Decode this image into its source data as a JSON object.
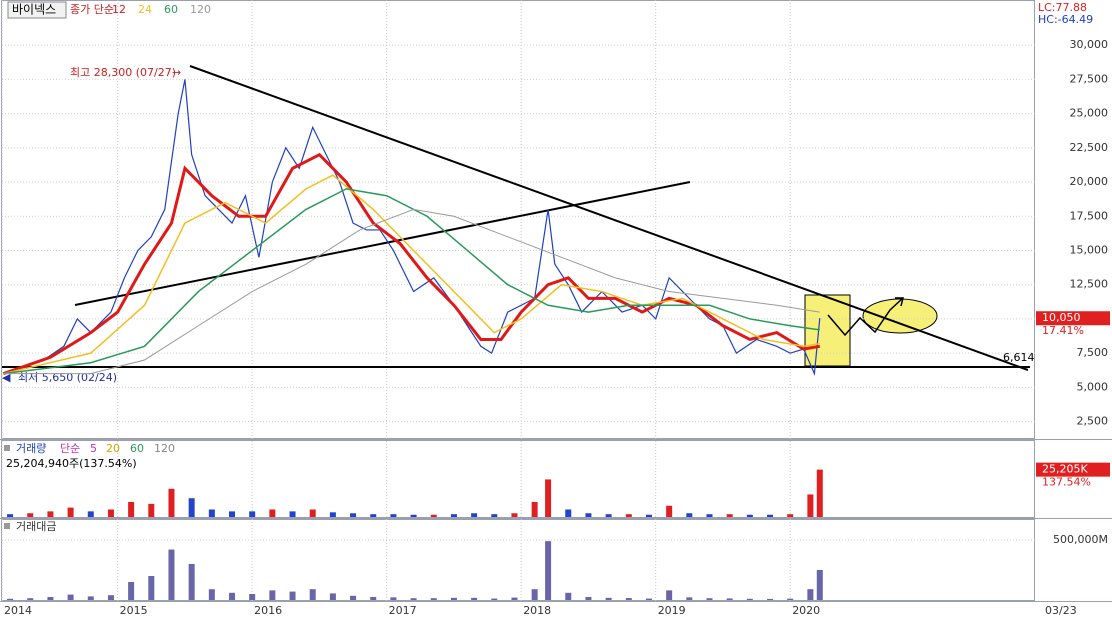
{
  "header": {
    "stock": "바이넥스",
    "legend_prefix": "종가 단순",
    "lc": "LC:77.88",
    "hc": "HC:-64.49",
    "date_label": "03/23"
  },
  "chart_data": [
    {
      "type": "line",
      "xlim": [
        2014.14,
        2021.82
      ],
      "ylim": [
        1300,
        33300
      ],
      "yticks": [
        {
          "value": 2500,
          "label": "2,500"
        },
        {
          "value": 5000,
          "label": "5,000"
        },
        {
          "value": 7500,
          "label": "7,500"
        },
        {
          "value": 10000,
          "label": "10,000"
        },
        {
          "value": 12500,
          "label": "12,500"
        },
        {
          "value": 15000,
          "label": "15,000"
        },
        {
          "value": 17500,
          "label": "17,500"
        },
        {
          "value": 20000,
          "label": "20,000"
        },
        {
          "value": 22500,
          "label": "22,500"
        },
        {
          "value": 25000,
          "label": "25,000"
        },
        {
          "value": 27500,
          "label": "27,500"
        },
        {
          "value": 30000,
          "label": "30,000"
        }
      ],
      "grid": true,
      "price": {
        "color": "#2040c0",
        "x": [
          2014.15,
          2014.3,
          2014.45,
          2014.6,
          2014.7,
          2014.8,
          2014.95,
          2015.05,
          2015.15,
          2015.25,
          2015.35,
          2015.45,
          2015.5,
          2015.55,
          2015.65,
          2015.75,
          2015.85,
          2015.95,
          2016.05,
          2016.15,
          2016.25,
          2016.35,
          2016.45,
          2016.55,
          2016.65,
          2016.75,
          2016.85,
          2016.95,
          2017.05,
          2017.2,
          2017.35,
          2017.5,
          2017.6,
          2017.7,
          2017.78,
          2017.9,
          2018.0,
          2018.1,
          2018.2,
          2018.25,
          2018.35,
          2018.45,
          2018.6,
          2018.75,
          2018.9,
          2019.0,
          2019.1,
          2019.25,
          2019.4,
          2019.5,
          2019.6,
          2019.75,
          2019.9,
          2020.0,
          2020.1,
          2020.18,
          2020.22
        ],
        "values": [
          6000,
          6500,
          7000,
          8000,
          10000,
          9000,
          10500,
          13000,
          15000,
          16000,
          18000,
          25000,
          27500,
          22000,
          19000,
          18000,
          17000,
          19000,
          14500,
          20000,
          22500,
          21000,
          24000,
          22000,
          20000,
          17000,
          16500,
          16500,
          15000,
          12000,
          13000,
          11000,
          9500,
          8000,
          7500,
          10500,
          11000,
          11500,
          18000,
          14000,
          12500,
          10500,
          12000,
          10500,
          11000,
          10000,
          13000,
          11500,
          10000,
          9500,
          7500,
          8500,
          8000,
          7500,
          7800,
          6000,
          10050
        ]
      },
      "series": [
        {
          "name": "12",
          "color": "#e01818",
          "width": 3,
          "x": [
            2014.15,
            2014.5,
            2014.8,
            2015.0,
            2015.2,
            2015.4,
            2015.5,
            2015.7,
            2015.9,
            2016.1,
            2016.3,
            2016.5,
            2016.7,
            2016.9,
            2017.1,
            2017.3,
            2017.5,
            2017.7,
            2017.85,
            2018.0,
            2018.2,
            2018.35,
            2018.5,
            2018.7,
            2018.9,
            2019.1,
            2019.3,
            2019.5,
            2019.7,
            2019.9,
            2020.1,
            2020.22
          ],
          "values": [
            6000,
            7200,
            9000,
            10500,
            14000,
            17000,
            21000,
            19000,
            17500,
            17500,
            21000,
            22000,
            20000,
            17000,
            15500,
            13000,
            11000,
            8500,
            8500,
            10500,
            12500,
            13000,
            11500,
            11500,
            10500,
            11500,
            11000,
            9500,
            8500,
            9000,
            7800,
            8000
          ]
        },
        {
          "name": "24",
          "color": "#f0c020",
          "width": 1.5,
          "x": [
            2014.15,
            2014.8,
            2015.2,
            2015.5,
            2015.8,
            2016.1,
            2016.4,
            2016.6,
            2016.9,
            2017.2,
            2017.5,
            2017.8,
            2018.0,
            2018.3,
            2018.6,
            2018.9,
            2019.2,
            2019.5,
            2019.8,
            2020.1,
            2020.22
          ],
          "values": [
            6000,
            7500,
            11000,
            17000,
            18500,
            17000,
            19500,
            20500,
            18000,
            15000,
            12000,
            9000,
            10000,
            12500,
            12000,
            11000,
            11500,
            10000,
            8500,
            8000,
            8200
          ]
        },
        {
          "name": "60",
          "color": "#2a9a5a",
          "width": 1.5,
          "x": [
            2014.15,
            2014.8,
            2015.2,
            2015.6,
            2016.0,
            2016.4,
            2016.7,
            2017.0,
            2017.3,
            2017.6,
            2017.9,
            2018.2,
            2018.5,
            2018.8,
            2019.1,
            2019.4,
            2019.7,
            2020.0,
            2020.22
          ],
          "values": [
            6000,
            6800,
            8000,
            12000,
            15000,
            18000,
            19500,
            19000,
            17500,
            15000,
            12500,
            11000,
            10500,
            11000,
            11000,
            11000,
            10000,
            9500,
            9200
          ]
        },
        {
          "name": "120",
          "color": "#9a9a9a",
          "width": 1,
          "x": [
            2014.15,
            2014.8,
            2015.2,
            2015.6,
            2016.0,
            2016.4,
            2016.8,
            2017.2,
            2017.5,
            2017.9,
            2018.3,
            2018.7,
            2019.1,
            2019.5,
            2019.9,
            2020.22
          ],
          "values": [
            6000,
            6000,
            7000,
            9500,
            12000,
            14000,
            16500,
            18000,
            17500,
            16000,
            14500,
            13000,
            12000,
            11500,
            11000,
            10500
          ]
        }
      ],
      "high_label": "최고 28,300 (07/27)",
      "low_label": "최저 5,650 (02/24)",
      "level_label": "6,614",
      "current": {
        "value": 10050,
        "label": "10,050",
        "change": "17.41%"
      }
    },
    {
      "type": "bar",
      "title": "거래량",
      "legend_prefix": "단순",
      "ma_labels": [
        {
          "label": "5",
          "color": "#c030c0"
        },
        {
          "label": "20",
          "color": "#e0a000"
        },
        {
          "label": "60",
          "color": "#2a9a5a"
        },
        {
          "label": "120",
          "color": "#888888"
        }
      ],
      "info": "25,204,940주(137.54%)",
      "xlim": [
        2014.14,
        2021.82
      ],
      "ylim": [
        0,
        33000000
      ],
      "x": [
        2014.2,
        2014.35,
        2014.5,
        2014.65,
        2014.8,
        2014.95,
        2015.1,
        2015.25,
        2015.4,
        2015.55,
        2015.7,
        2015.85,
        2016.0,
        2016.15,
        2016.3,
        2016.45,
        2016.6,
        2016.75,
        2016.9,
        2017.05,
        2017.2,
        2017.35,
        2017.5,
        2017.65,
        2017.8,
        2017.95,
        2018.1,
        2018.2,
        2018.35,
        2018.5,
        2018.65,
        2018.8,
        2018.95,
        2019.1,
        2019.25,
        2019.4,
        2019.55,
        2019.7,
        2019.85,
        2020.0,
        2020.15,
        2020.22
      ],
      "values": [
        1500000,
        2000000,
        3000000,
        5000000,
        3000000,
        4000000,
        8000000,
        7000000,
        15000000,
        10000000,
        4000000,
        3000000,
        3000000,
        4000000,
        3000000,
        4000000,
        2500000,
        2000000,
        1500000,
        1500000,
        1200000,
        1200000,
        1500000,
        2000000,
        1500000,
        2000000,
        8000000,
        20000000,
        4000000,
        2000000,
        1500000,
        1500000,
        1200000,
        6000000,
        2000000,
        1500000,
        1500000,
        1200000,
        1200000,
        1500000,
        12000000,
        25204940
      ],
      "colors": [
        "#2244cc",
        "#e02020",
        "#e02020",
        "#e02020",
        "#2244cc",
        "#e02020",
        "#e02020",
        "#e02020",
        "#e02020",
        "#2244cc",
        "#2244cc",
        "#2244cc",
        "#2244cc",
        "#e02020",
        "#2244cc",
        "#e02020",
        "#2244cc",
        "#2244cc",
        "#2244cc",
        "#2244cc",
        "#2244cc",
        "#e02020",
        "#2244cc",
        "#2244cc",
        "#2244cc",
        "#e02020",
        "#e02020",
        "#e02020",
        "#2244cc",
        "#2244cc",
        "#2244cc",
        "#e02020",
        "#2244cc",
        "#e02020",
        "#2244cc",
        "#2244cc",
        "#e02020",
        "#2244cc",
        "#2244cc",
        "#e02020",
        "#e02020",
        "#e02020"
      ],
      "current": {
        "value": 25204940,
        "label": "25,205K",
        "change": "137.54%"
      }
    },
    {
      "type": "bar",
      "title": "거래대금",
      "color": "#6a64a8",
      "xlim": [
        2014.14,
        2021.82
      ],
      "ylim": [
        0,
        666000
      ],
      "yticks": [
        {
          "value": 500000,
          "label": "500,000M"
        }
      ],
      "xticks": [
        {
          "value": 2014.14,
          "label": "2014"
        },
        2015,
        2016,
        2017,
        2018,
        2019,
        2020
      ],
      "x": [
        2014.2,
        2014.35,
        2014.5,
        2014.65,
        2014.8,
        2014.95,
        2015.1,
        2015.25,
        2015.4,
        2015.55,
        2015.7,
        2015.85,
        2016.0,
        2016.15,
        2016.3,
        2016.45,
        2016.6,
        2016.75,
        2016.9,
        2017.05,
        2017.2,
        2017.35,
        2017.5,
        2017.65,
        2017.8,
        2017.95,
        2018.1,
        2018.2,
        2018.35,
        2018.5,
        2018.65,
        2018.8,
        2018.95,
        2019.1,
        2019.25,
        2019.4,
        2019.55,
        2019.7,
        2019.85,
        2020.0,
        2020.15,
        2020.22
      ],
      "values": [
        10000,
        15000,
        25000,
        45000,
        30000,
        40000,
        150000,
        200000,
        420000,
        300000,
        90000,
        60000,
        50000,
        80000,
        70000,
        90000,
        55000,
        35000,
        25000,
        22000,
        15000,
        15000,
        18000,
        18000,
        12000,
        20000,
        90000,
        490000,
        60000,
        25000,
        18000,
        16000,
        12000,
        80000,
        22000,
        15000,
        13000,
        10000,
        9000,
        11000,
        90000,
        250000
      ]
    }
  ]
}
